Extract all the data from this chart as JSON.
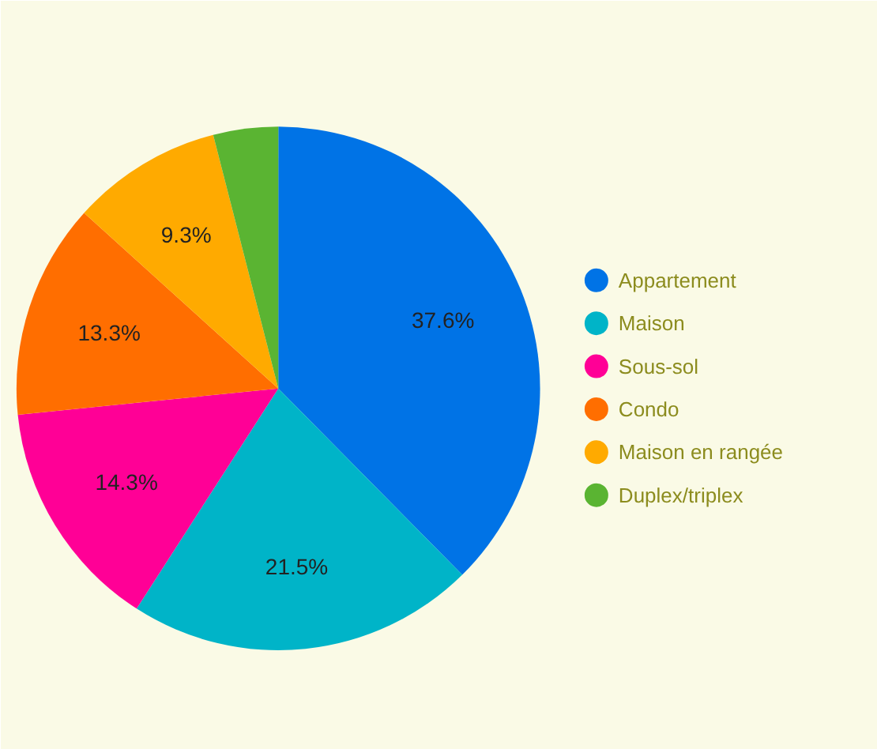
{
  "chart_data": {
    "type": "pie",
    "categories": [
      "Appartement",
      "Maison",
      "Sous-sol",
      "Condo",
      "Maison en rangée",
      "Duplex/triplex"
    ],
    "values": [
      37.6,
      21.5,
      14.3,
      13.3,
      9.3,
      4.0
    ],
    "colors": [
      "#0073e6",
      "#00b4c8",
      "#ff0096",
      "#ff6e00",
      "#ffaa00",
      "#5ab432"
    ],
    "value_labels": [
      "37.6%",
      "21.5%",
      "14.3%",
      "13.3%",
      "9.3%",
      null
    ],
    "legend": "right"
  }
}
